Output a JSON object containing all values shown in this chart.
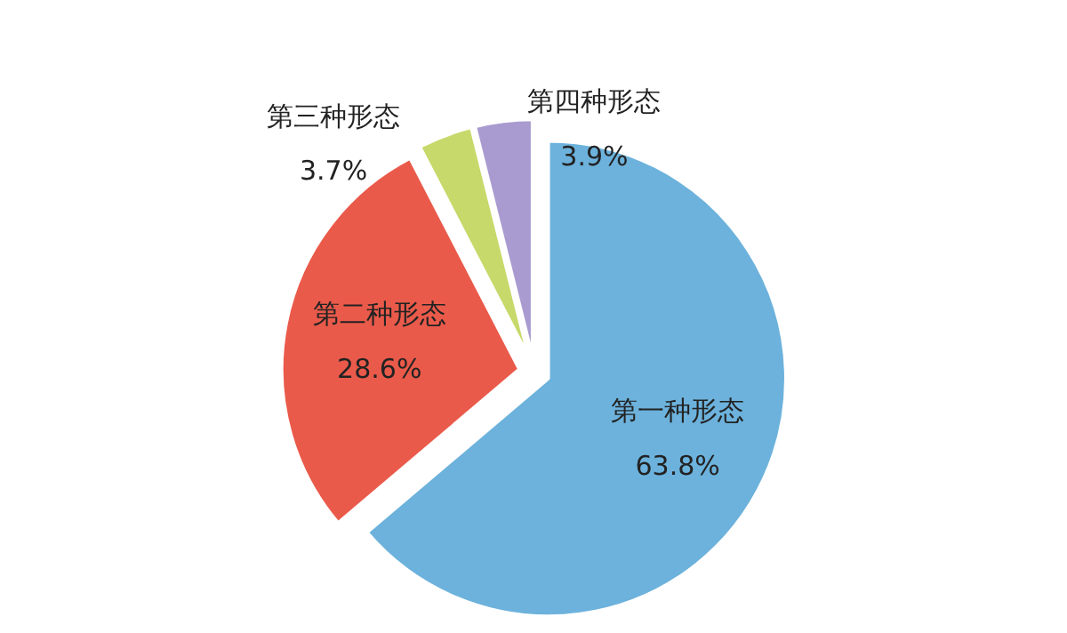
{
  "chart_data": {
    "type": "pie",
    "categories": [
      "第一种形态",
      "第二种形态",
      "第三种形态",
      "第四种形态"
    ],
    "values": [
      63.8,
      28.6,
      3.7,
      3.9
    ],
    "colors": [
      "#6cb2dc",
      "#ea5a4a",
      "#c6d96a",
      "#a99bd0"
    ],
    "value_labels": [
      "63.8%",
      "28.6%",
      "3.7%",
      "3.9%"
    ]
  }
}
